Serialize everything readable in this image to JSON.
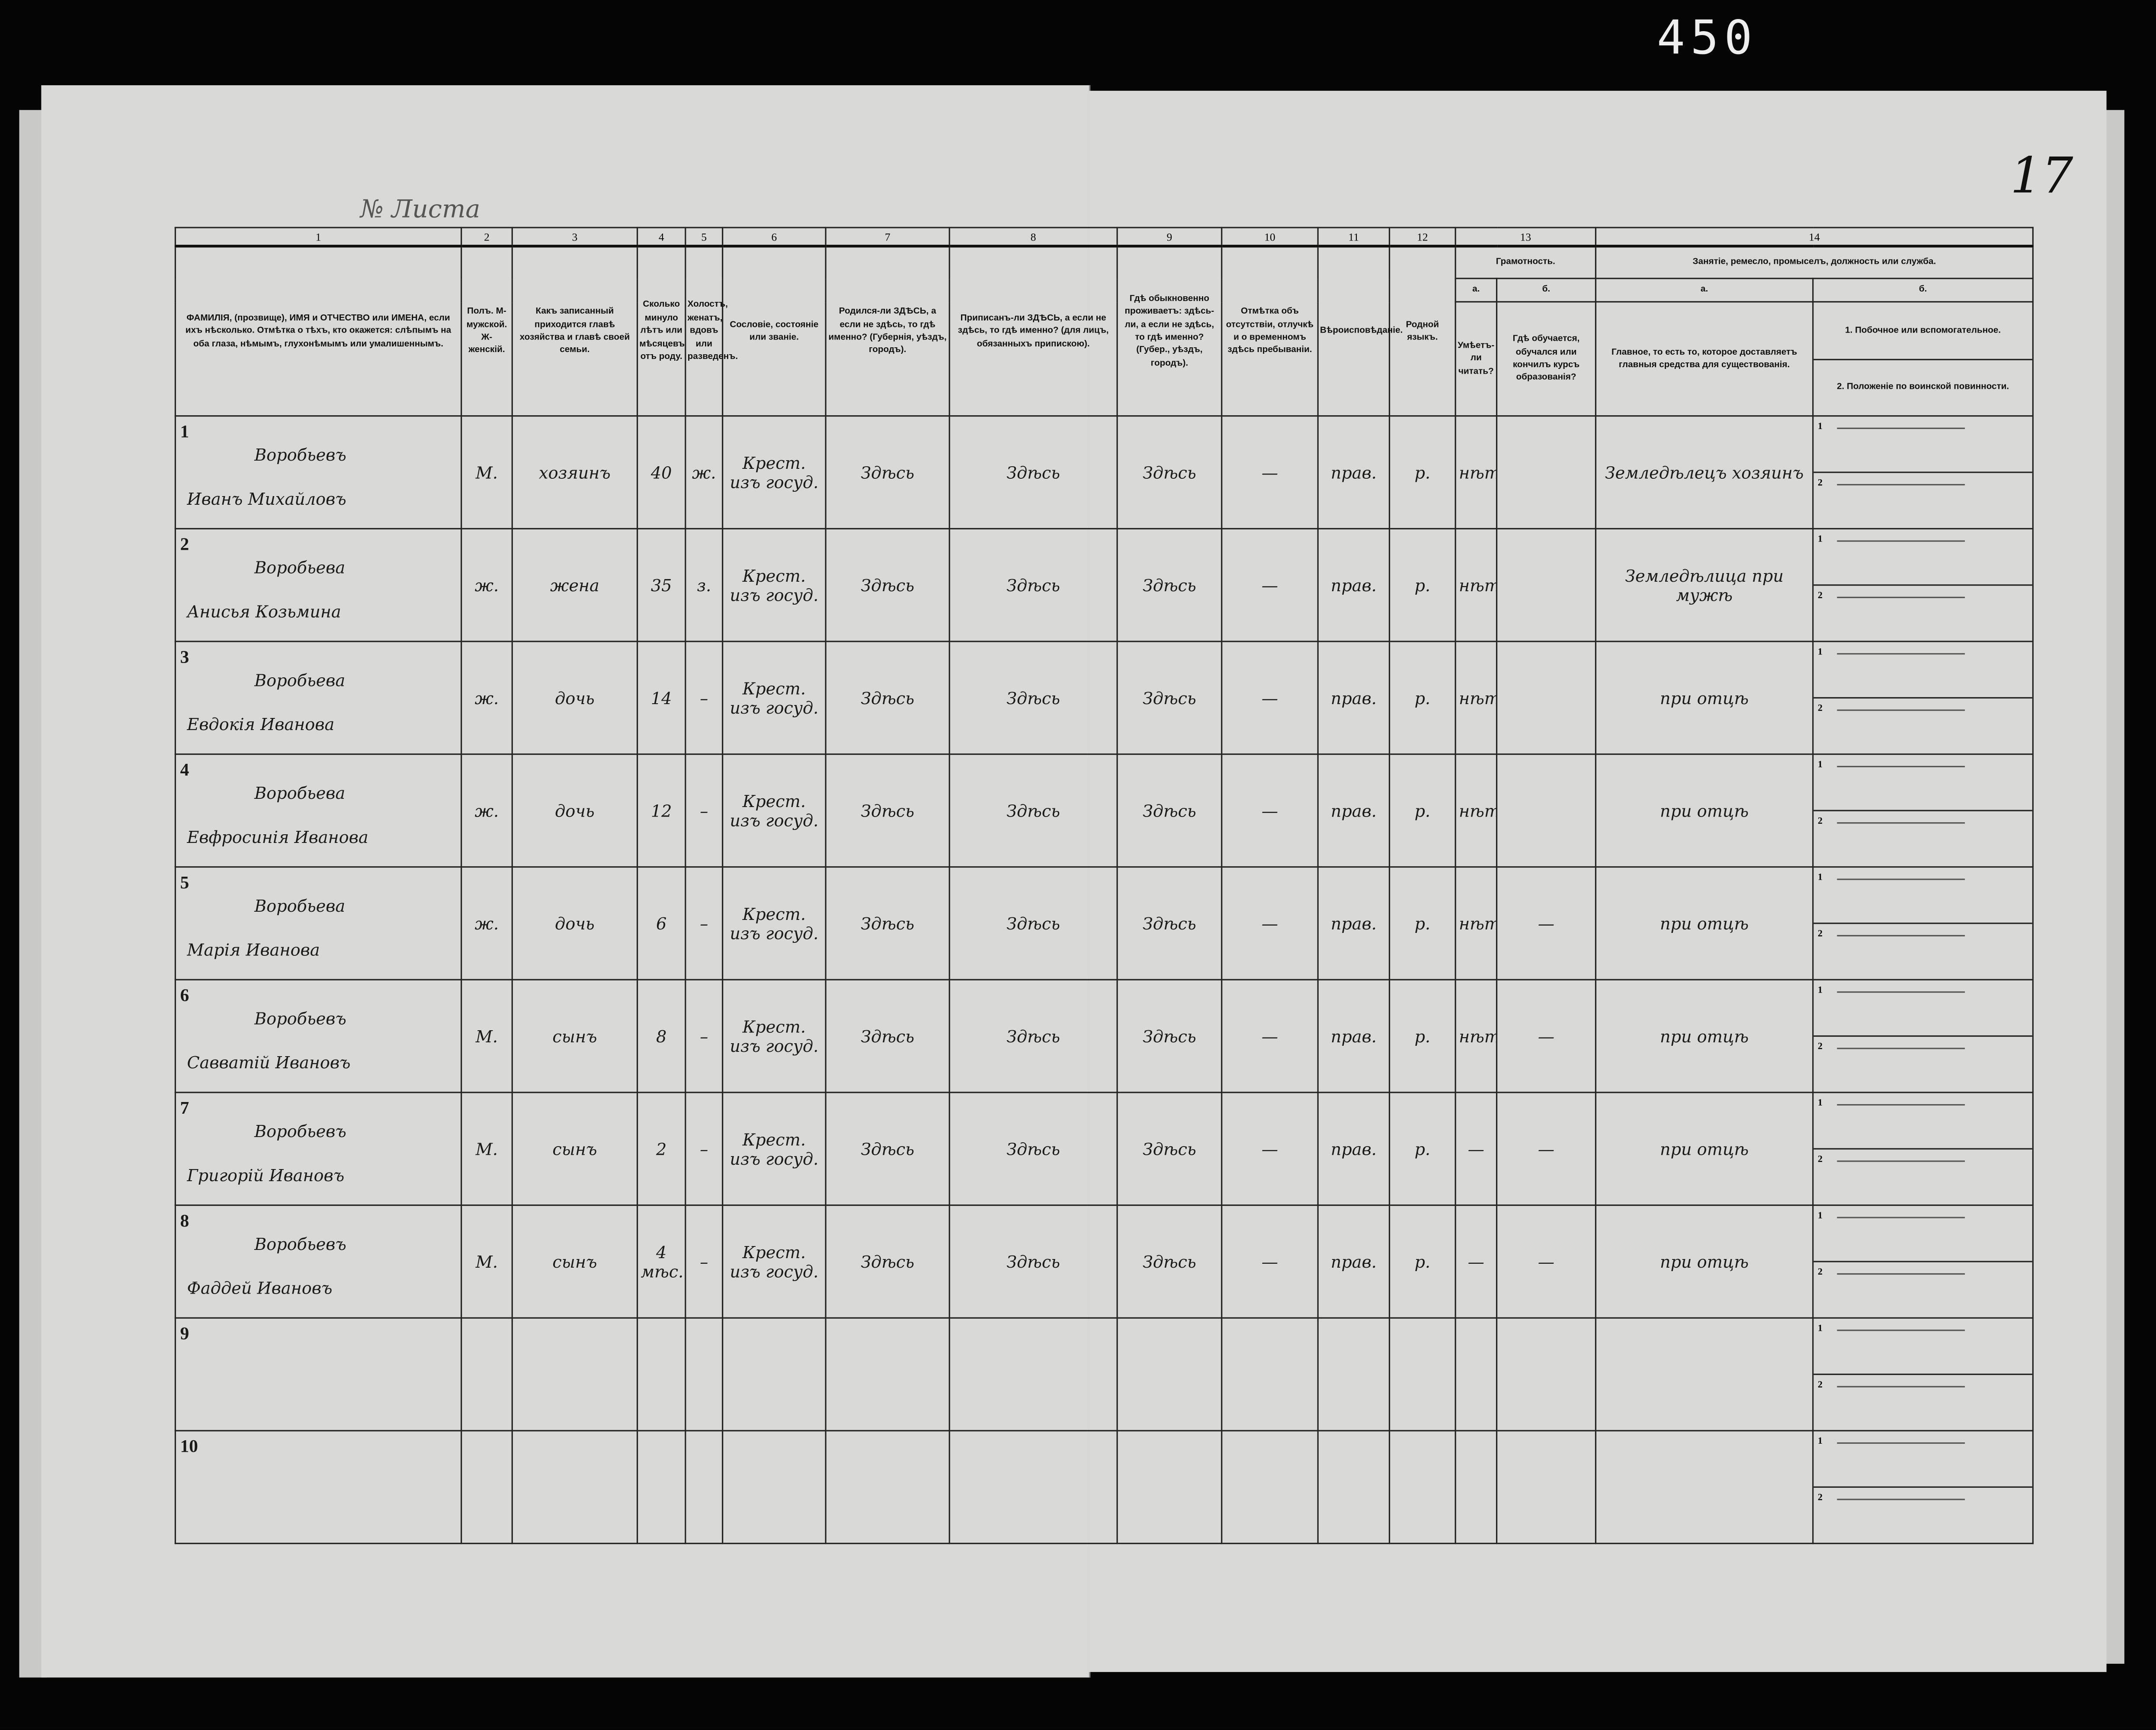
{
  "page_number": "450",
  "sheet_number_handwritten": "17",
  "sheet_label": "№ Листа",
  "columns": {
    "numbers": [
      "1",
      "2",
      "3",
      "4",
      "5",
      "6",
      "7",
      "8",
      "9",
      "10",
      "11",
      "12",
      "13",
      "14"
    ],
    "c1": "ФАМИЛІЯ, (прозвище), ИМЯ и ОТЧЕСТВО или ИМЕНА, если ихъ нѣсколько. Отмѣтка о тѣхъ, кто окажется: слѣпымъ на оба глаза, нѣмымъ, глухонѣмымъ или умалишеннымъ.",
    "c2": "Полъ. М-мужской. Ж-женскій.",
    "c3": "Какъ записанный приходится главѣ хозяйства и главѣ своей семьи.",
    "c4": "Сколько минуло лѣтъ или мѣсяцевъ отъ роду.",
    "c5": "Холостъ, женатъ, вдовъ или разведенъ.",
    "c6": "Сословіе, состояніе или званіе.",
    "c7": "Родился-ли ЗДѢСЬ, а если не здѣсь, то гдѣ именно? (Губернія, уѣздъ, городъ).",
    "c8": "Приписанъ-ли ЗДѢСЬ, а если не здѣсь, то гдѣ именно? (для лицъ, обязанныхъ припискою).",
    "c9": "Гдѣ обыкновенно проживаетъ: здѣсь-ли, а если не здѣсь, то гдѣ именно? (Губер., уѣздъ, городъ).",
    "c10": "Отмѣтка объ отсутствіи, отлучкѣ и о временномъ здѣсь пребываніи.",
    "c11": "Вѣроисповѣданіе.",
    "c12": "Родной языкъ.",
    "c13": "Грамотность.",
    "c13a_letter": "а.",
    "c13a": "Умѣетъ-ли читать?",
    "c13b_letter": "б.",
    "c13b": "Гдѣ обучается, обучался или кончилъ курсъ образованія?",
    "c14": "Занятіе, ремесло, промыселъ, должность или служба.",
    "c14a_letter": "а.",
    "c14a": "Главное, то есть то, которое доставляетъ главныя средства для существованія.",
    "c14b_letter": "б.",
    "c14b1": "1. Побочное или вспомогательное.",
    "c14b2": "2. Положеніе по воинской повинности."
  },
  "rows": [
    {
      "n": "1",
      "surname": "Воробьевъ",
      "given": "Иванъ Михайловъ",
      "sex": "М.",
      "relation": "хозяинъ",
      "age": "40",
      "marital": "ж.",
      "estate": "Крест. изъ госуд.",
      "born": "Здѣсь",
      "registered": "Здѣсь",
      "lives": "Здѣсь",
      "absence": "—",
      "religion": "прав.",
      "language": "р.",
      "reads": "нѣтъ",
      "school": "",
      "occupation": "Земледѣлецъ хозяинъ",
      "sub1": "1",
      "sub2": "2"
    },
    {
      "n": "2",
      "surname": "Воробьева",
      "given": "Анисья Козьмина",
      "sex": "ж.",
      "relation": "жена",
      "age": "35",
      "marital": "з.",
      "estate": "Крест. изъ госуд.",
      "born": "Здѣсь",
      "registered": "Здѣсь",
      "lives": "Здѣсь",
      "absence": "—",
      "religion": "прав.",
      "language": "р.",
      "reads": "нѣтъ",
      "school": "",
      "occupation": "Земледѣлица при мужѣ",
      "sub1": "1",
      "sub2": "2"
    },
    {
      "n": "3",
      "surname": "Воробьева",
      "given": "Евдокія Иванова",
      "sex": "ж.",
      "relation": "дочь",
      "age": "14",
      "marital": "–",
      "estate": "Крест. изъ госуд.",
      "born": "Здѣсь",
      "registered": "Здѣсь",
      "lives": "Здѣсь",
      "absence": "—",
      "religion": "прав.",
      "language": "р.",
      "reads": "нѣтъ",
      "school": "",
      "occupation": "при отцѣ",
      "sub1": "1",
      "sub2": "2"
    },
    {
      "n": "4",
      "surname": "Воробьева",
      "given": "Евфросинія Иванова",
      "sex": "ж.",
      "relation": "дочь",
      "age": "12",
      "marital": "–",
      "estate": "Крест. изъ госуд.",
      "born": "Здѣсь",
      "registered": "Здѣсь",
      "lives": "Здѣсь",
      "absence": "—",
      "religion": "прав.",
      "language": "р.",
      "reads": "нѣтъ",
      "school": "",
      "occupation": "при отцѣ",
      "sub1": "1",
      "sub2": "2"
    },
    {
      "n": "5",
      "surname": "Воробьева",
      "given": "Марія Иванова",
      "sex": "ж.",
      "relation": "дочь",
      "age": "6",
      "marital": "–",
      "estate": "Крест. изъ госуд.",
      "born": "Здѣсь",
      "registered": "Здѣсь",
      "lives": "Здѣсь",
      "absence": "—",
      "religion": "прав.",
      "language": "р.",
      "reads": "нѣтъ",
      "school": "—",
      "occupation": "при отцѣ",
      "sub1": "1",
      "sub2": "2"
    },
    {
      "n": "6",
      "surname": "Воробьевъ",
      "given": "Савватій Ивановъ",
      "sex": "М.",
      "relation": "сынъ",
      "age": "8",
      "marital": "–",
      "estate": "Крест. изъ госуд.",
      "born": "Здѣсь",
      "registered": "Здѣсь",
      "lives": "Здѣсь",
      "absence": "—",
      "religion": "прав.",
      "language": "р.",
      "reads": "нѣтъ",
      "school": "—",
      "occupation": "при отцѣ",
      "sub1": "1",
      "sub2": "2"
    },
    {
      "n": "7",
      "surname": "Воробьевъ",
      "given": "Григорій Ивановъ",
      "sex": "М.",
      "relation": "сынъ",
      "age": "2",
      "marital": "–",
      "estate": "Крест. изъ госуд.",
      "born": "Здѣсь",
      "registered": "Здѣсь",
      "lives": "Здѣсь",
      "absence": "—",
      "religion": "прав.",
      "language": "р.",
      "reads": "—",
      "school": "—",
      "occupation": "при отцѣ",
      "sub1": "1",
      "sub2": "2"
    },
    {
      "n": "8",
      "surname": "Воробьевъ",
      "given": "Фаддей Ивановъ",
      "sex": "М.",
      "relation": "сынъ",
      "age": "4 мѣс.",
      "marital": "–",
      "estate": "Крест. изъ госуд.",
      "born": "Здѣсь",
      "registered": "Здѣсь",
      "lives": "Здѣсь",
      "absence": "—",
      "religion": "прав.",
      "language": "р.",
      "reads": "—",
      "school": "—",
      "occupation": "при отцѣ",
      "sub1": "1",
      "sub2": "2"
    },
    {
      "n": "9",
      "surname": "",
      "given": "",
      "sex": "",
      "relation": "",
      "age": "",
      "marital": "",
      "estate": "",
      "born": "",
      "registered": "",
      "lives": "",
      "absence": "",
      "religion": "",
      "language": "",
      "reads": "",
      "school": "",
      "occupation": "",
      "sub1": "1",
      "sub2": "2"
    },
    {
      "n": "10",
      "surname": "",
      "given": "",
      "sex": "",
      "relation": "",
      "age": "",
      "marital": "",
      "estate": "",
      "born": "",
      "registered": "",
      "lives": "",
      "absence": "",
      "religion": "",
      "language": "",
      "reads": "",
      "school": "",
      "occupation": "",
      "sub1": "1",
      "sub2": "2"
    }
  ]
}
